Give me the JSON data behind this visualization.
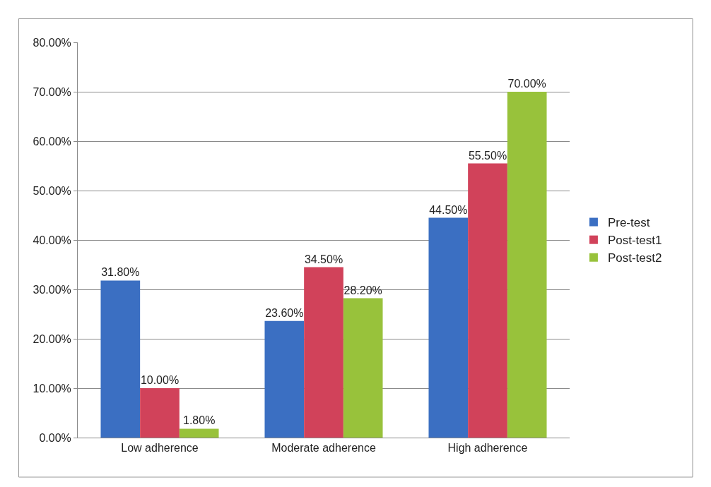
{
  "chart_data": {
    "type": "bar",
    "categories": [
      "Low adherence",
      "Moderate adherence",
      "High adherence"
    ],
    "series": [
      {
        "name": "Pre-test",
        "color": "#3b6fc2",
        "values": [
          31.8,
          23.6,
          44.5
        ],
        "value_labels": [
          "31.80%",
          "23.60%",
          "44.50%"
        ]
      },
      {
        "name": "Post-test1",
        "color": "#d1425a",
        "values": [
          10.0,
          34.5,
          55.5
        ],
        "value_labels": [
          "10.00%",
          "34.50%",
          "55.50%"
        ]
      },
      {
        "name": "Post-test2",
        "color": "#98c23b",
        "values": [
          1.8,
          28.2,
          70.0
        ],
        "value_labels": [
          "1.80%",
          "28.20%",
          "70.00%"
        ]
      }
    ],
    "ylim": [
      0,
      80
    ],
    "yticks": [
      {
        "value": 0,
        "label": "0.00%"
      },
      {
        "value": 10,
        "label": "10.00%"
      },
      {
        "value": 20,
        "label": "20.00%"
      },
      {
        "value": 30,
        "label": "30.00%"
      },
      {
        "value": 40,
        "label": "40.00%"
      },
      {
        "value": 50,
        "label": "50.00%"
      },
      {
        "value": 60,
        "label": "60.00%"
      },
      {
        "value": 70,
        "label": "70.00%"
      },
      {
        "value": 80,
        "label": "80.00%"
      }
    ],
    "grid": "y",
    "legend": "right"
  }
}
